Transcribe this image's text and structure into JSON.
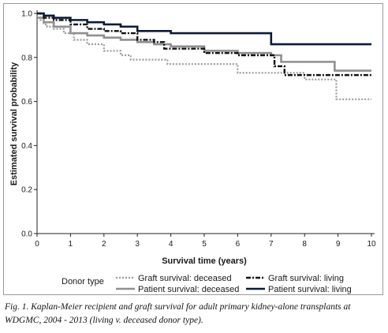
{
  "chart_data": {
    "type": "line",
    "title": "",
    "xlabel": "Survival time (years)",
    "ylabel": "Estimated survival probability",
    "xlim": [
      0,
      10
    ],
    "ylim": [
      0,
      1
    ],
    "xticks": [
      "0",
      "1",
      "2",
      "3",
      "4",
      "5",
      "6",
      "7",
      "8",
      "9",
      "10"
    ],
    "yticks": [
      "0.0",
      "0.2",
      "0.4",
      "0.6",
      "0.8",
      "1.0"
    ],
    "grid": false,
    "legend_title": "Donor type",
    "legend_position": "bottom",
    "series": [
      {
        "name": "Graft survival: deceased",
        "style": "dotted",
        "color": "#9a9a9a",
        "x": [
          0,
          0.1,
          0.2,
          0.3,
          0.5,
          0.8,
          1.1,
          1.5,
          2.0,
          2.5,
          2.8,
          3.6,
          3.9,
          5.0,
          6.0,
          7.0,
          8.0,
          8.95,
          9.3,
          10.0
        ],
        "y": [
          1.0,
          0.97,
          0.95,
          0.94,
          0.93,
          0.91,
          0.88,
          0.86,
          0.83,
          0.81,
          0.79,
          0.79,
          0.77,
          0.77,
          0.73,
          0.73,
          0.7,
          0.61,
          0.61,
          0.61
        ]
      },
      {
        "name": "Graft survival: living",
        "style": "dashdot",
        "color": "#111111",
        "x": [
          0,
          0.2,
          0.5,
          1.0,
          1.5,
          2.0,
          2.5,
          3.0,
          3.5,
          3.8,
          5.0,
          6.0,
          6.9,
          7.1,
          7.4,
          8.0,
          9.0,
          10.0
        ],
        "y": [
          1.0,
          0.98,
          0.97,
          0.95,
          0.93,
          0.92,
          0.91,
          0.88,
          0.87,
          0.84,
          0.82,
          0.81,
          0.81,
          0.76,
          0.72,
          0.72,
          0.72,
          0.72
        ]
      },
      {
        "name": "Patient survival: deceased",
        "style": "solid",
        "color": "#8f8f8f",
        "x": [
          0,
          0.2,
          0.5,
          1.0,
          1.5,
          2.0,
          2.5,
          3.0,
          3.5,
          4.0,
          5.0,
          6.0,
          7.0,
          7.3,
          8.0,
          8.9,
          9.5,
          10.0
        ],
        "y": [
          0.98,
          0.96,
          0.94,
          0.91,
          0.9,
          0.89,
          0.88,
          0.87,
          0.86,
          0.85,
          0.83,
          0.82,
          0.81,
          0.78,
          0.78,
          0.74,
          0.74,
          0.74
        ]
      },
      {
        "name": "Patient survival: living",
        "style": "solid",
        "color": "#0e1a33",
        "x": [
          0,
          0.2,
          0.5,
          1.0,
          1.5,
          2.0,
          2.5,
          3.0,
          3.5,
          4.0,
          5.0,
          6.0,
          6.9,
          7.0,
          8.0,
          9.0,
          10.0
        ],
        "y": [
          1.0,
          0.99,
          0.98,
          0.97,
          0.96,
          0.95,
          0.94,
          0.92,
          0.92,
          0.91,
          0.91,
          0.91,
          0.91,
          0.86,
          0.86,
          0.86,
          0.86
        ]
      }
    ]
  },
  "caption": "Fig. 1. Kaplan-Meier recipient and graft survival for adult primary kidney-alone transplants at WDGMC, 2004 - 2013 (living v. deceased donor type)."
}
